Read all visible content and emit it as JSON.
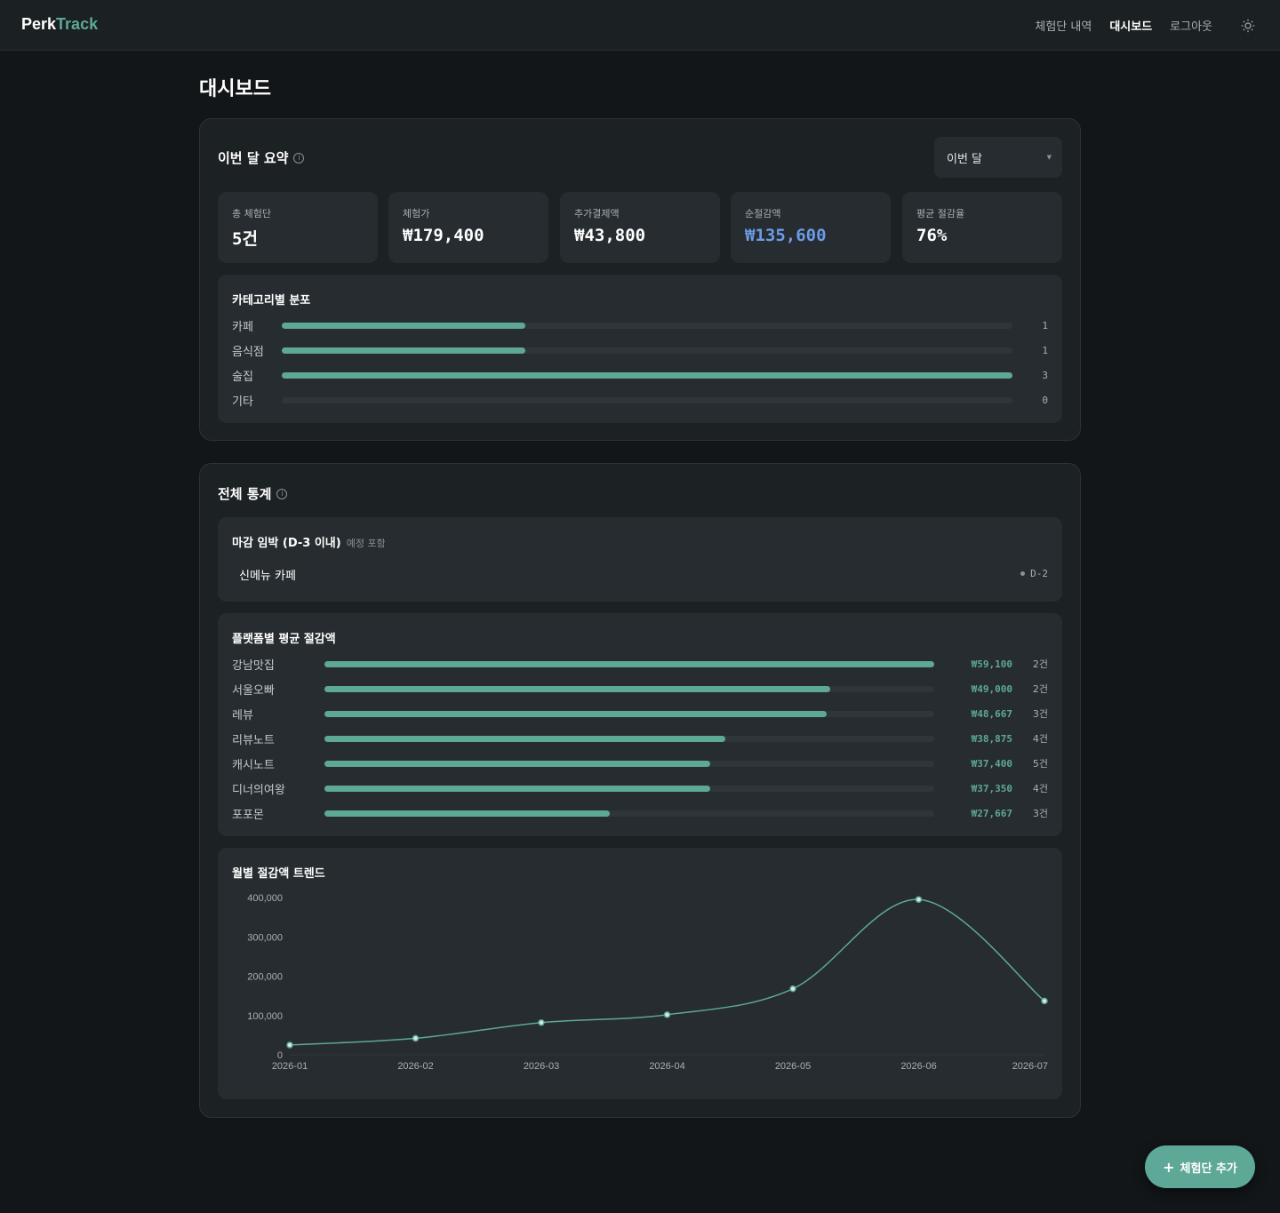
{
  "brand": {
    "name_main": "Perk",
    "name_accent": "Track",
    "accent_color": "#5ea898"
  },
  "nav": {
    "items": [
      "체험단 내역",
      "대시보드",
      "로그아웃"
    ],
    "active": "대시보드",
    "theme_icon": "sun-icon"
  },
  "page_title": "대시보드",
  "summary": {
    "title": "이번 달 요약",
    "period_select": "이번 달",
    "stats": [
      {
        "label": "총 체험단",
        "value": "5건"
      },
      {
        "label": "체험가",
        "value": "₩179,400"
      },
      {
        "label": "추가결제액",
        "value": "₩43,800"
      },
      {
        "label": "순절감액",
        "value": "₩135,600",
        "color": "#6c9ce8"
      },
      {
        "label": "평균 절감율",
        "value": "76%"
      }
    ],
    "category": {
      "title": "카테고리별 분포",
      "max": 3,
      "items": [
        {
          "name": "카페",
          "count": 1
        },
        {
          "name": "음식점",
          "count": 1
        },
        {
          "name": "술집",
          "count": 3
        },
        {
          "name": "기타",
          "count": 0
        }
      ]
    }
  },
  "overall": {
    "title": "전체 통계",
    "deadline": {
      "title": "마감 임박 (D-3 이내)",
      "subtitle": "예정 포함",
      "items": [
        {
          "name": "신메뉴 카페",
          "d": "D-2"
        }
      ]
    },
    "platform": {
      "title": "플랫폼별 평균 절감액",
      "max": 59100,
      "items": [
        {
          "name": "강남맛집",
          "amount_value": 59100,
          "amount": "₩59,100",
          "count": "2건"
        },
        {
          "name": "서울오빠",
          "amount_value": 49000,
          "amount": "₩49,000",
          "count": "2건"
        },
        {
          "name": "레뷰",
          "amount_value": 48667,
          "amount": "₩48,667",
          "count": "3건"
        },
        {
          "name": "리뷰노트",
          "amount_value": 38875,
          "amount": "₩38,875",
          "count": "4건"
        },
        {
          "name": "캐시노트",
          "amount_value": 37400,
          "amount": "₩37,400",
          "count": "5건"
        },
        {
          "name": "디너의여왕",
          "amount_value": 37350,
          "amount": "₩37,350",
          "count": "4건"
        },
        {
          "name": "포포몬",
          "amount_value": 27667,
          "amount": "₩27,667",
          "count": "3건"
        }
      ]
    },
    "trend": {
      "title": "월별 절감액 트렌드"
    }
  },
  "fab": {
    "label": "체험단 추가"
  },
  "chart_data": {
    "type": "line",
    "title": "월별 절감액 트렌드",
    "x": [
      "2026-01",
      "2026-02",
      "2026-03",
      "2026-04",
      "2026-05",
      "2026-06",
      "2026-07"
    ],
    "y_ticks": [
      "0",
      "100,000",
      "200,000",
      "300,000",
      "400,000"
    ],
    "y_tick_values": [
      0,
      100000,
      200000,
      300000,
      400000
    ],
    "series": [
      {
        "values": [
          25000,
          42000,
          82000,
          102000,
          168000,
          395000,
          137000
        ]
      }
    ],
    "ylim": [
      0,
      400000
    ],
    "line_color": "#5ea898",
    "grid": false
  }
}
